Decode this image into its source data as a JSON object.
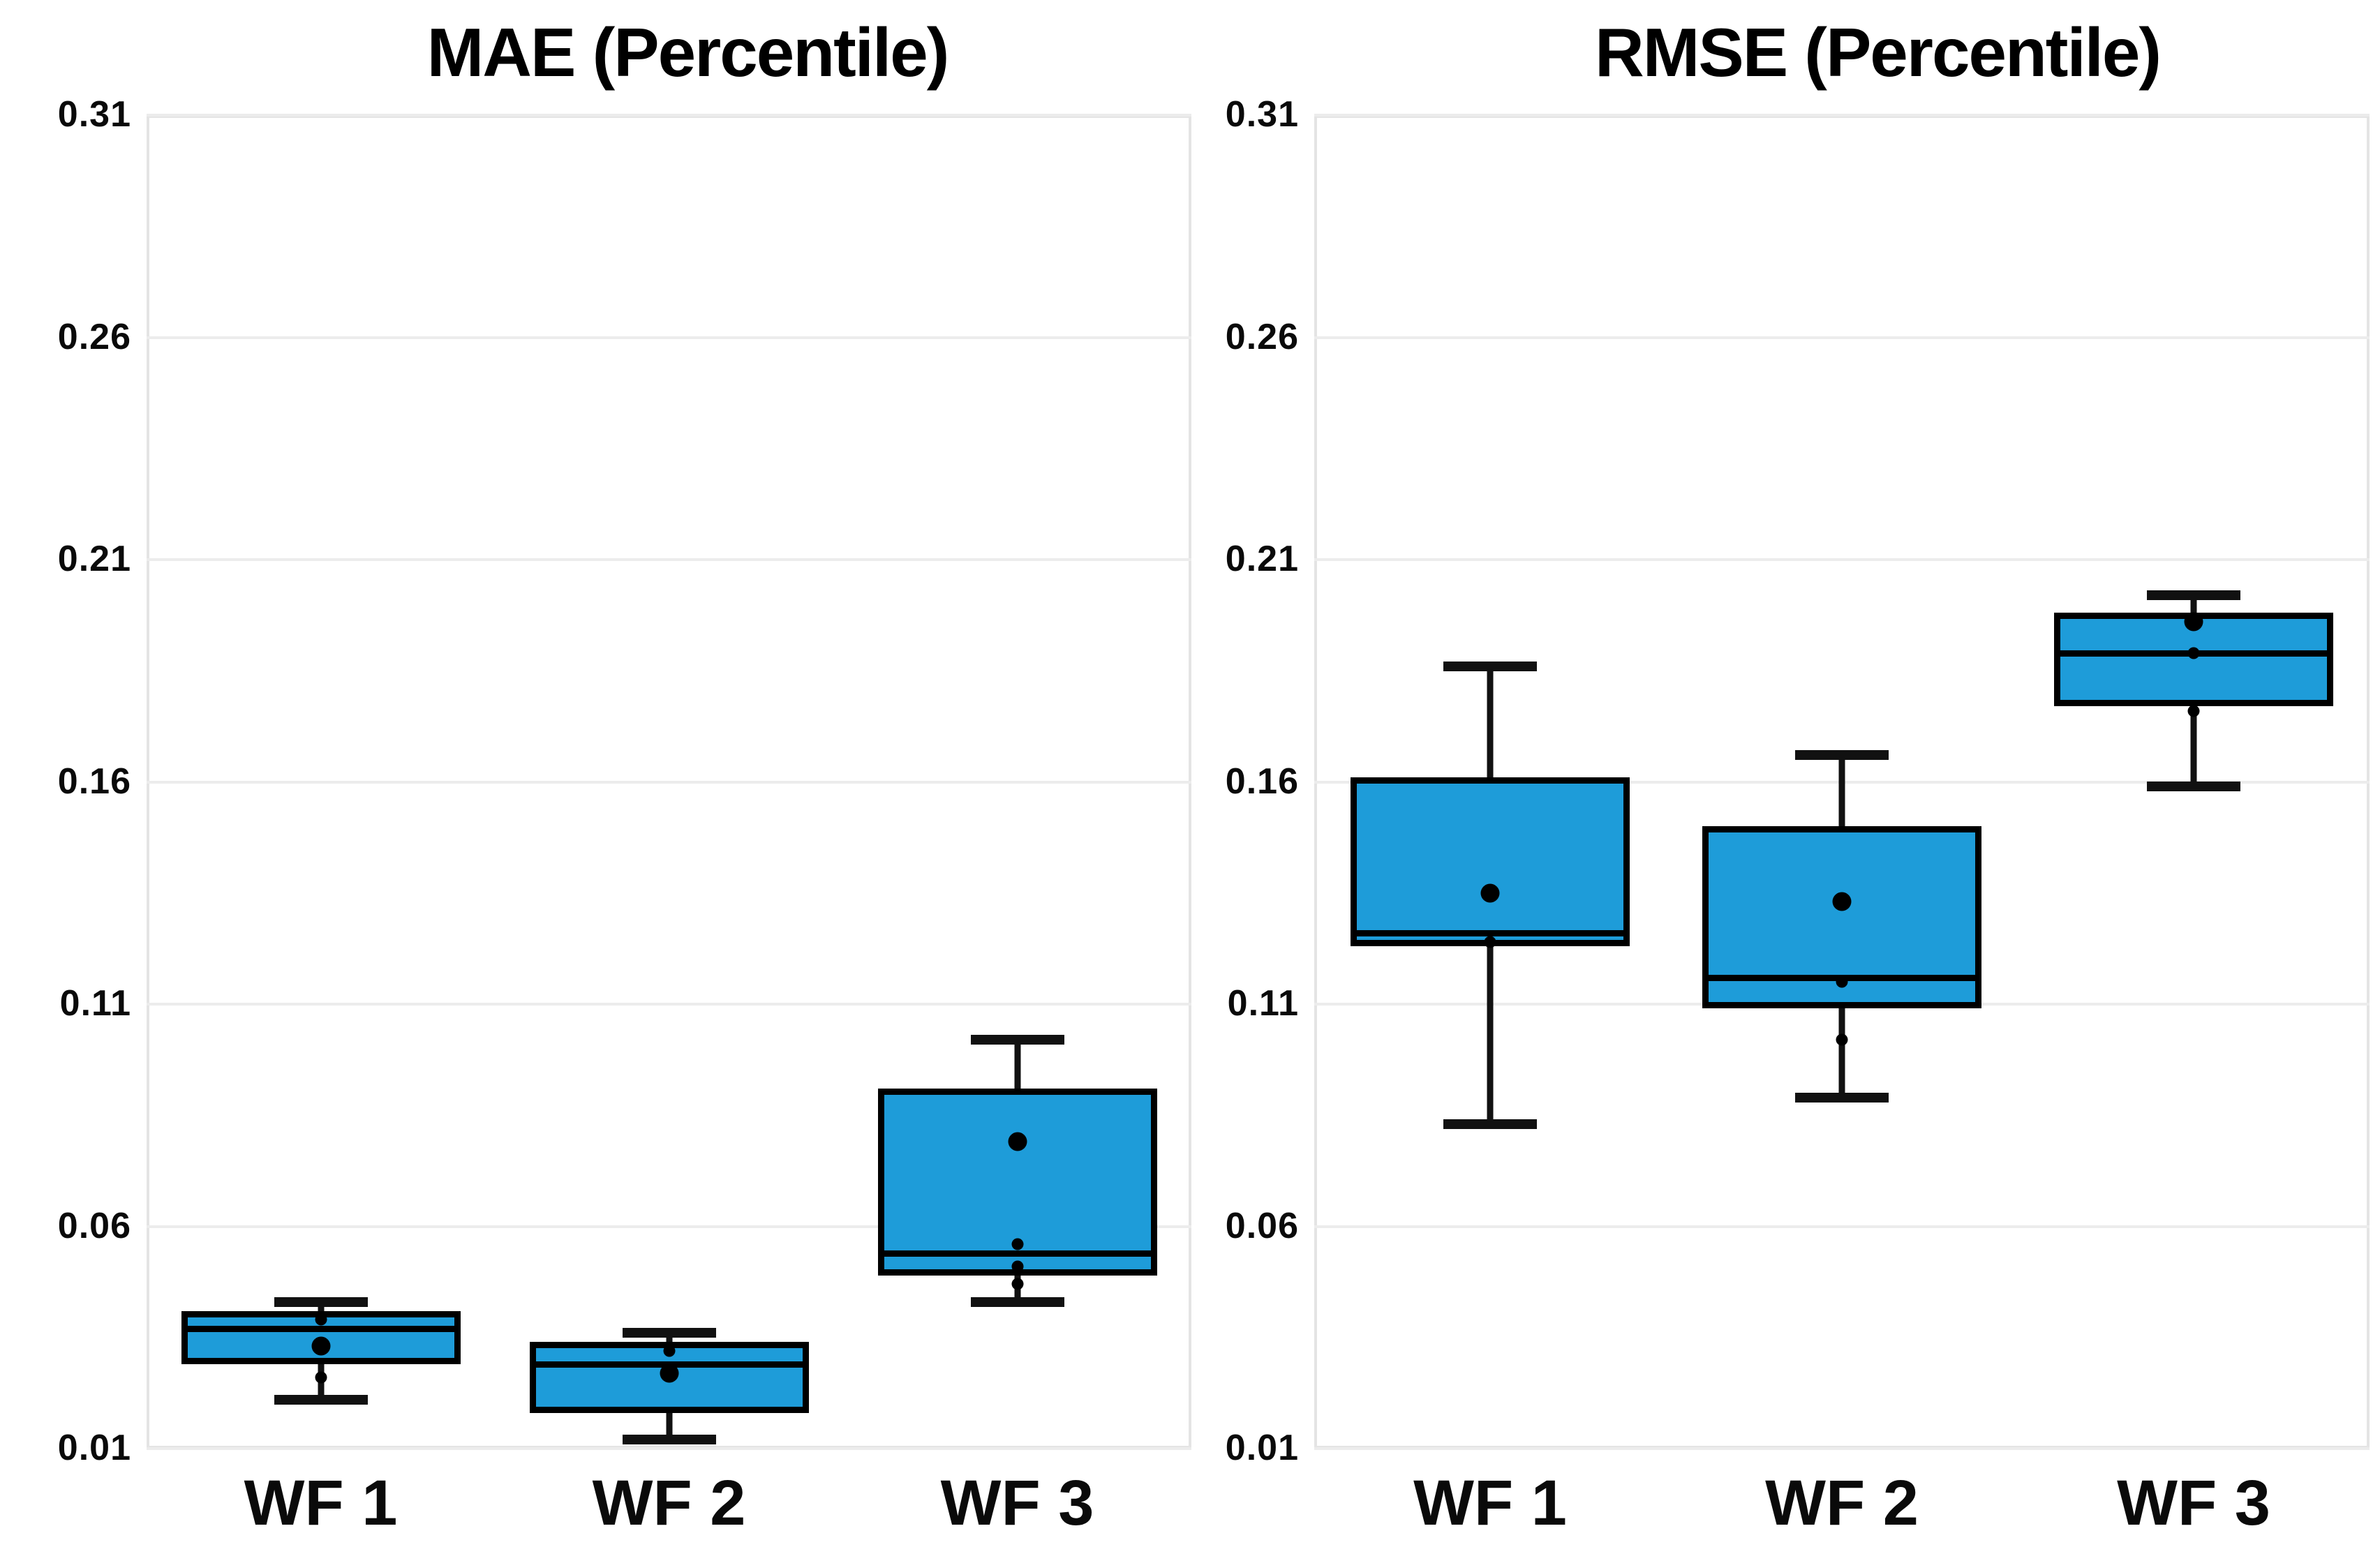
{
  "figure": {
    "background": "#ffffff",
    "panel_titles": [
      "MAE (Percentile)",
      "RMSE (Percentile)"
    ]
  },
  "style": {
    "box_fill": "#1e9cd9",
    "box_edge": "#000000",
    "whisker_color": "#111111",
    "grid_color": "#ececec",
    "spine_color": "#e4e4e4",
    "title_color": "#000000",
    "tick_label_color": "#0a0a0a"
  },
  "chart_data": [
    {
      "type": "box",
      "title": "MAE (Percentile)",
      "categories": [
        "WF 1",
        "WF 2",
        "WF 3"
      ],
      "ylim": [
        0.01,
        0.31
      ],
      "yticks": [
        0.31,
        0.26,
        0.21,
        0.16,
        0.11,
        0.06,
        0.01
      ],
      "ytick_labels": [
        "0.31",
        "0.26",
        "0.21",
        "0.16",
        "0.11",
        "0.06",
        "0.01"
      ],
      "grid": true,
      "legend": false,
      "series": [
        {
          "category": "WF 1",
          "whisker_low": 0.021,
          "q1": 0.029,
          "median": 0.037,
          "q3": 0.041,
          "whisker_high": 0.043,
          "mean": 0.033,
          "points": [
            0.039,
            0.026
          ]
        },
        {
          "category": "WF 2",
          "whisker_low": 0.012,
          "q1": 0.018,
          "median": 0.029,
          "q3": 0.034,
          "whisker_high": 0.036,
          "mean": 0.027,
          "points": [
            0.032
          ]
        },
        {
          "category": "WF 3",
          "whisker_low": 0.043,
          "q1": 0.049,
          "median": 0.054,
          "q3": 0.091,
          "whisker_high": 0.102,
          "mean": 0.079,
          "points": [
            0.056,
            0.051,
            0.047
          ]
        }
      ]
    },
    {
      "type": "box",
      "title": "RMSE (Percentile)",
      "categories": [
        "WF 1",
        "WF 2",
        "WF 3"
      ],
      "ylim": [
        0.01,
        0.31
      ],
      "yticks": [
        0.31,
        0.26,
        0.21,
        0.16,
        0.11,
        0.06,
        0.01
      ],
      "ytick_labels": [
        "0.31",
        "0.26",
        "0.21",
        "0.16",
        "0.11",
        "0.06",
        "0.01"
      ],
      "grid": true,
      "legend": false,
      "series": [
        {
          "category": "WF 1",
          "whisker_low": 0.083,
          "q1": 0.123,
          "median": 0.126,
          "q3": 0.161,
          "whisker_high": 0.186,
          "mean": 0.135,
          "points": [
            0.124
          ]
        },
        {
          "category": "WF 2",
          "whisker_low": 0.089,
          "q1": 0.109,
          "median": 0.116,
          "q3": 0.15,
          "whisker_high": 0.166,
          "mean": 0.133,
          "points": [
            0.115,
            0.102
          ]
        },
        {
          "category": "WF 3",
          "whisker_low": 0.159,
          "q1": 0.177,
          "median": 0.189,
          "q3": 0.198,
          "whisker_high": 0.202,
          "mean": 0.196,
          "points": [
            0.189,
            0.176
          ]
        }
      ]
    }
  ]
}
